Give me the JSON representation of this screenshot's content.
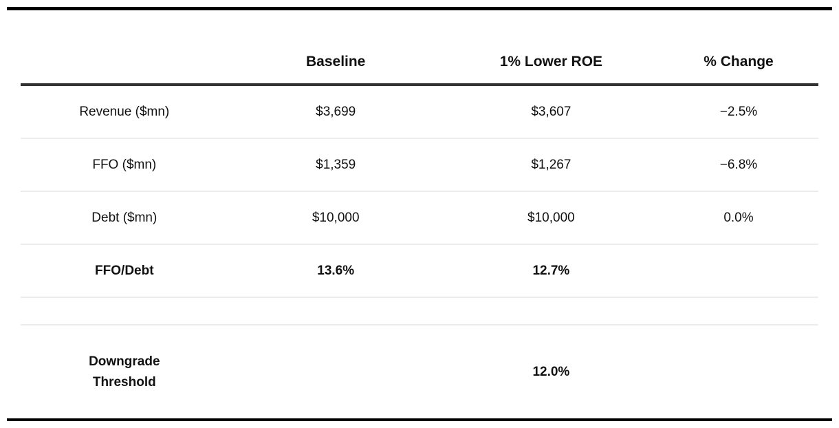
{
  "chart_data": {
    "type": "table",
    "columns": [
      "",
      "Baseline",
      "1% Lower ROE",
      "% Change"
    ],
    "rows": [
      {
        "label": "Revenue ($mn)",
        "values": [
          "$3,699",
          "$3,607",
          "−2.5%"
        ],
        "emphasis": false,
        "spacer": false
      },
      {
        "label": "FFO ($mn)",
        "values": [
          "$1,359",
          "$1,267",
          "−6.8%"
        ],
        "emphasis": false,
        "spacer": false
      },
      {
        "label": "Debt ($mn)",
        "values": [
          "$10,000",
          "$10,000",
          "0.0%"
        ],
        "emphasis": false,
        "spacer": false
      },
      {
        "label": "FFO/Debt",
        "values": [
          "13.6%",
          "12.7%",
          ""
        ],
        "emphasis": true,
        "spacer": false
      },
      {
        "label": "",
        "values": [
          "",
          "",
          ""
        ],
        "emphasis": false,
        "spacer": true
      },
      {
        "label": "Downgrade\nThreshold",
        "values": [
          "",
          "12.0%",
          ""
        ],
        "emphasis": true,
        "spacer": false
      }
    ],
    "numeric": {
      "revenue_mn": {
        "baseline": 3699,
        "lower_roe": 3607,
        "pct_change": -2.5
      },
      "ffo_mn": {
        "baseline": 1359,
        "lower_roe": 1267,
        "pct_change": -6.8
      },
      "debt_mn": {
        "baseline": 10000,
        "lower_roe": 10000,
        "pct_change": 0.0
      },
      "ffo_debt_pct": {
        "baseline": 13.6,
        "lower_roe": 12.7
      },
      "downgrade_threshold_pct": 12.0
    },
    "layout": {
      "grid": "horizontal rules only",
      "legend": "none"
    }
  },
  "colors": {
    "text": "#111111",
    "rule_heavy": "#000000",
    "rule_header": "#333333",
    "row_divider": "#ececec",
    "background": "#ffffff"
  }
}
